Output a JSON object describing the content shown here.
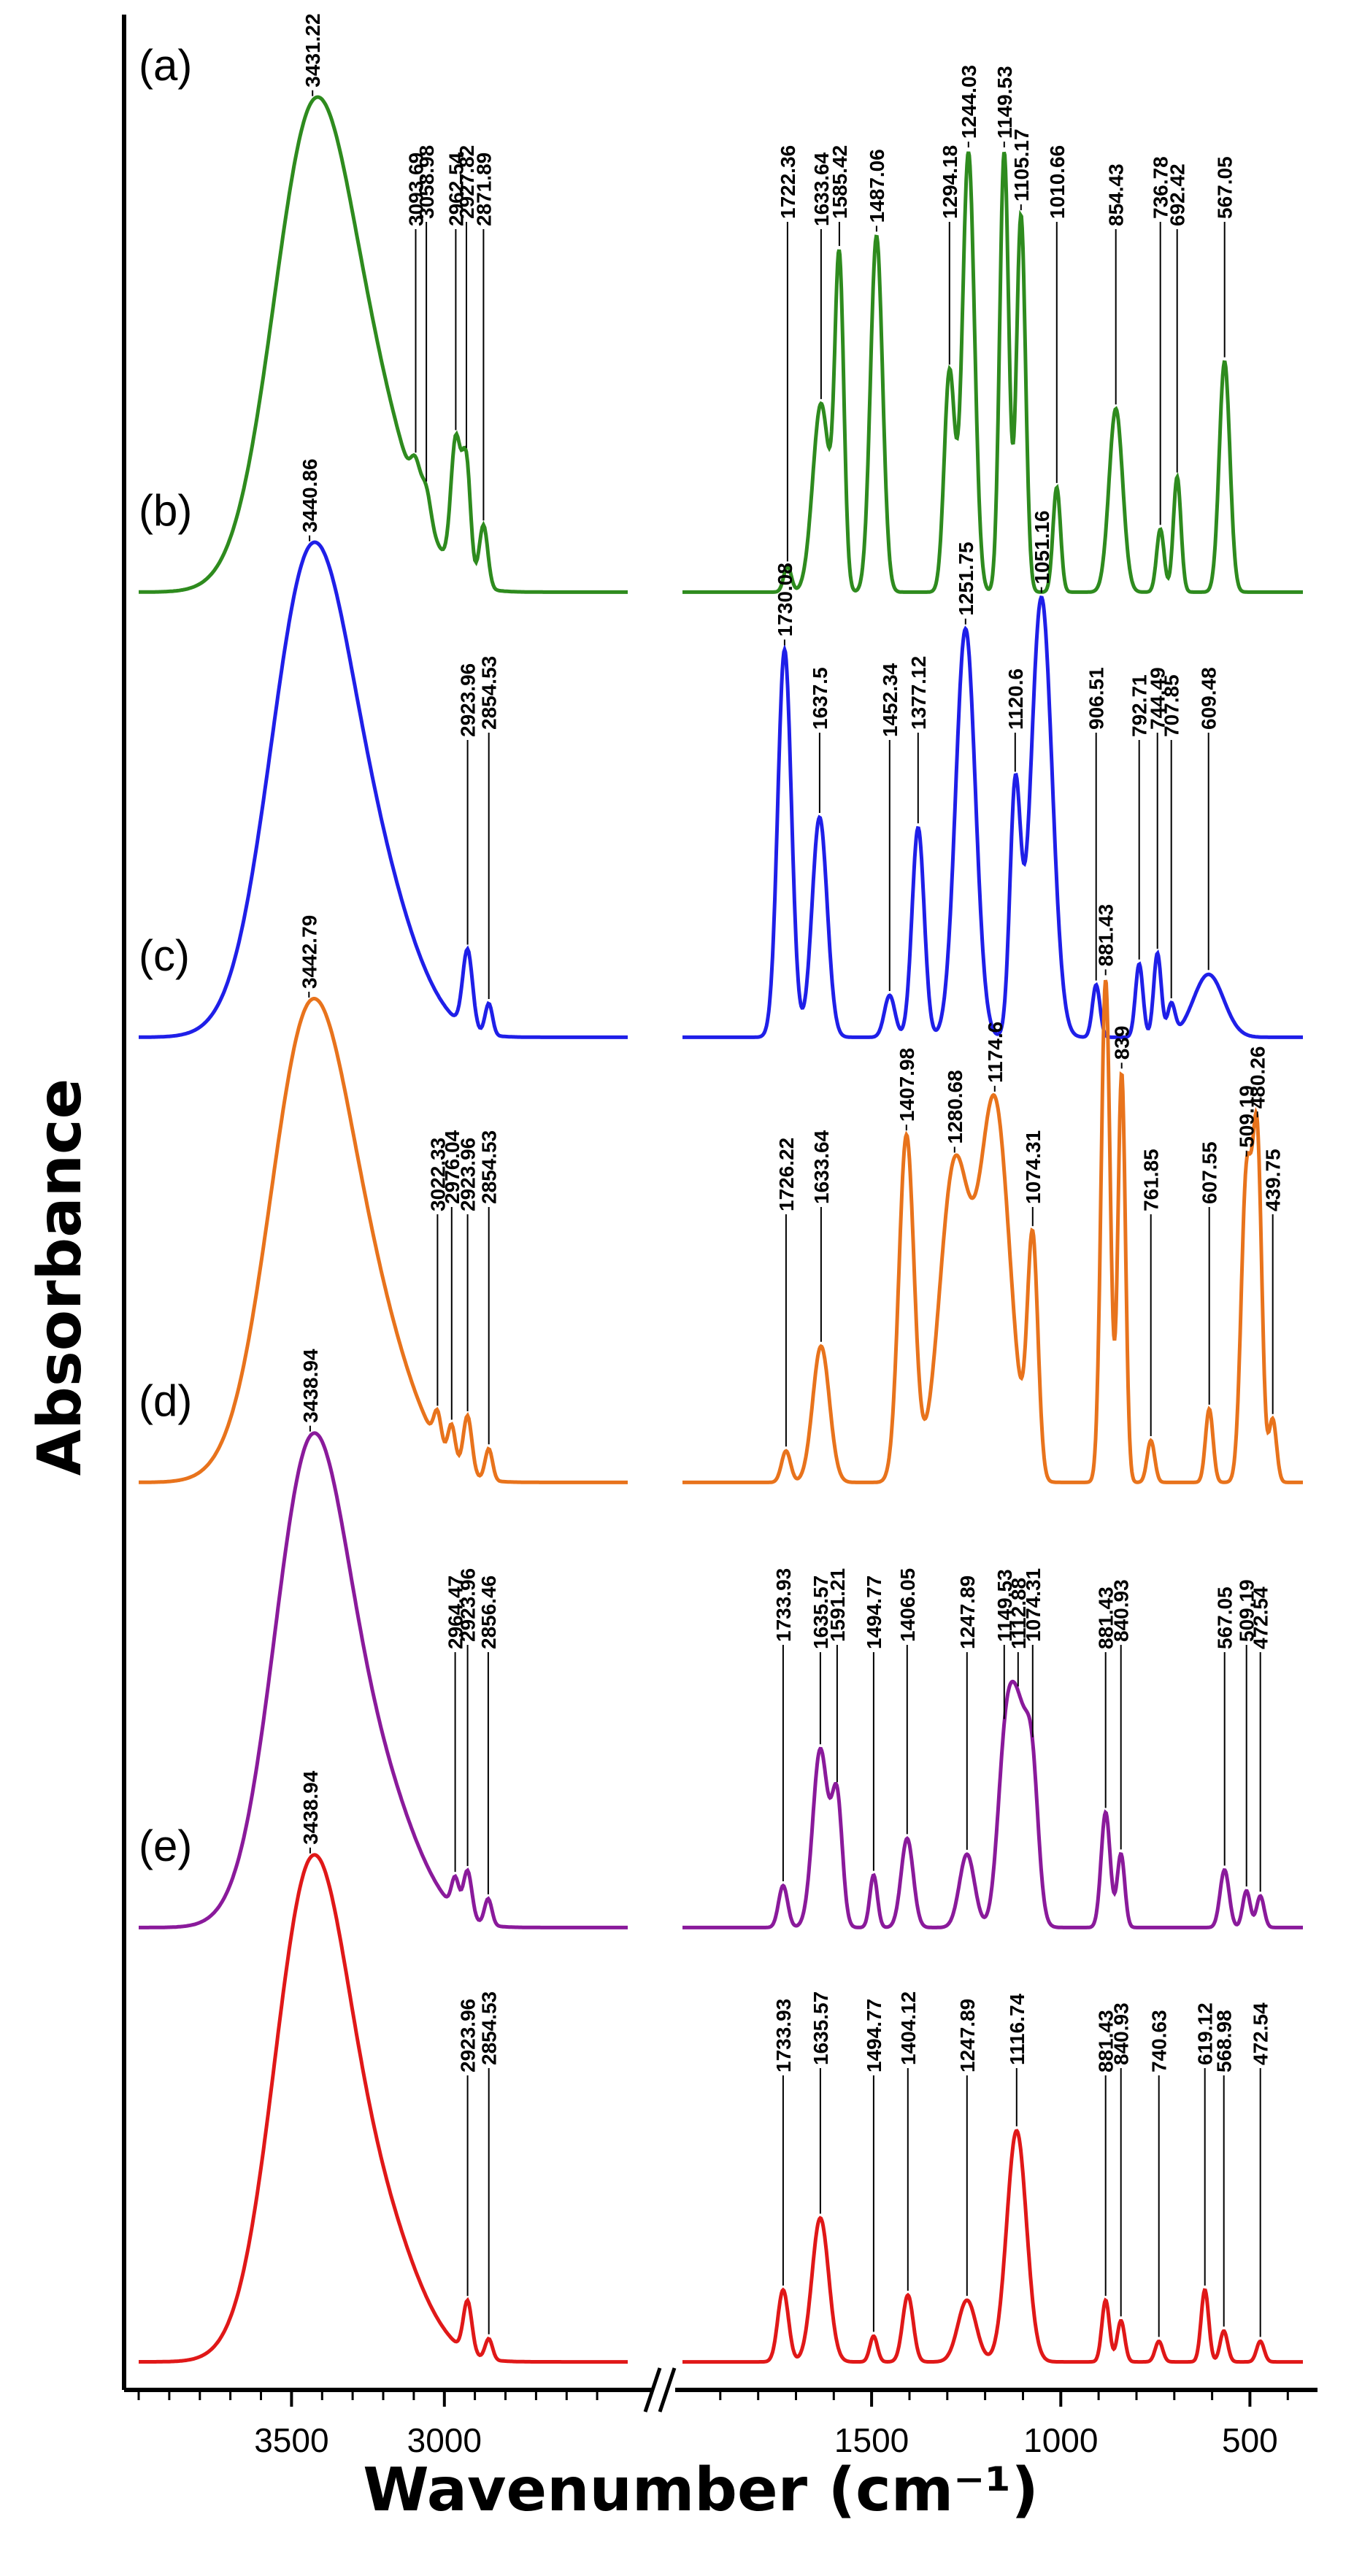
{
  "chart_data": {
    "type": "line",
    "title": "",
    "xlabel": "Wavenumber (cm⁻¹)",
    "ylabel": "Absorbance",
    "xaxis": {
      "reversed": true,
      "broken": true,
      "segments": [
        [
          4000,
          2400
        ],
        [
          2000,
          360
        ]
      ],
      "tick_labels": [
        "3500",
        "3000",
        "1500",
        "1000",
        "500"
      ],
      "tick_values": [
        3500,
        3000,
        1500,
        1000,
        500
      ]
    },
    "colors": {
      "a": "#2e8b1e",
      "b": "#1f1fe8",
      "c": "#e8731c",
      "d": "#8a1a9b",
      "e": "#e01818"
    },
    "series": [
      {
        "name": "(a)",
        "color_key": "a",
        "baseline_x": [
          4000,
          2400
        ],
        "peaks": [
          {
            "x": 3431.22,
            "h": 0.88,
            "w": 130,
            "label": "3431.22"
          },
          {
            "x": 3093.69,
            "h": 0.06,
            "w": 15,
            "label": "3093.69"
          },
          {
            "x": 3058.98,
            "h": 0.06,
            "w": 15,
            "label": "3058.98"
          },
          {
            "x": 2962.54,
            "h": 0.25,
            "w": 16,
            "label": "2962.54"
          },
          {
            "x": 2927.82,
            "h": 0.22,
            "w": 14,
            "label": "2927.82"
          },
          {
            "x": 2871.89,
            "h": 0.12,
            "w": 14,
            "label": "2871.89"
          },
          {
            "x": 1722.36,
            "h": 0.05,
            "w": 10,
            "label": "1722.36"
          },
          {
            "x": 1633.64,
            "h": 0.36,
            "w": 22,
            "label": "1633.64"
          },
          {
            "x": 1585.42,
            "h": 0.62,
            "w": 12,
            "label": "1585.42"
          },
          {
            "x": 1487.06,
            "h": 0.68,
            "w": 16,
            "label": "1487.06"
          },
          {
            "x": 1294.18,
            "h": 0.42,
            "w": 14,
            "label": "1294.18"
          },
          {
            "x": 1244.03,
            "h": 0.84,
            "w": 16,
            "label": "1244.03"
          },
          {
            "x": 1149.53,
            "h": 0.84,
            "w": 12,
            "label": "1149.53"
          },
          {
            "x": 1105.17,
            "h": 0.72,
            "w": 12,
            "label": "1105.17"
          },
          {
            "x": 1010.66,
            "h": 0.2,
            "w": 10,
            "label": "1010.66"
          },
          {
            "x": 854.43,
            "h": 0.35,
            "w": 18,
            "label": "854.43"
          },
          {
            "x": 736.78,
            "h": 0.12,
            "w": 10,
            "label": "736.78"
          },
          {
            "x": 692.42,
            "h": 0.22,
            "w": 10,
            "label": "692.42"
          },
          {
            "x": 567.05,
            "h": 0.44,
            "w": 14,
            "label": "567.05"
          }
        ]
      },
      {
        "name": "(b)",
        "color_key": "b",
        "baseline_x": [
          4000,
          2400
        ],
        "peaks": [
          {
            "x": 3440.86,
            "h": 0.88,
            "w": 130,
            "label": "3440.86"
          },
          {
            "x": 2923.96,
            "h": 0.15,
            "w": 16,
            "label": "2923.96"
          },
          {
            "x": 2854.53,
            "h": 0.06,
            "w": 12,
            "label": "2854.53"
          },
          {
            "x": 1730.08,
            "h": 0.74,
            "w": 18,
            "label": "1730.08"
          },
          {
            "x": 1637.5,
            "h": 0.42,
            "w": 20,
            "label": "1637.5"
          },
          {
            "x": 1452.34,
            "h": 0.08,
            "w": 14,
            "label": "1452.34"
          },
          {
            "x": 1377.12,
            "h": 0.4,
            "w": 16,
            "label": "1377.12"
          },
          {
            "x": 1251.75,
            "h": 0.78,
            "w": 26,
            "label": "1251.75"
          },
          {
            "x": 1120.6,
            "h": 0.46,
            "w": 14,
            "label": "1120.6"
          },
          {
            "x": 1051.16,
            "h": 0.84,
            "w": 28,
            "label": "1051.16"
          },
          {
            "x": 906.51,
            "h": 0.1,
            "w": 10,
            "label": "906.51"
          },
          {
            "x": 792.71,
            "h": 0.14,
            "w": 10,
            "label": "792.71"
          },
          {
            "x": 744.49,
            "h": 0.16,
            "w": 10,
            "label": "744.49"
          },
          {
            "x": 707.85,
            "h": 0.06,
            "w": 10,
            "label": "707.85"
          },
          {
            "x": 609.48,
            "h": 0.12,
            "w": 40,
            "label": "609.48"
          }
        ]
      },
      {
        "name": "(c)",
        "color_key": "c",
        "baseline_x": [
          4000,
          2400
        ],
        "peaks": [
          {
            "x": 3442.79,
            "h": 0.86,
            "w": 130,
            "label": "3442.79"
          },
          {
            "x": 3022.33,
            "h": 0.06,
            "w": 12,
            "label": "3022.33"
          },
          {
            "x": 2976.04,
            "h": 0.07,
            "w": 12,
            "label": "2976.04"
          },
          {
            "x": 2923.96,
            "h": 0.11,
            "w": 14,
            "label": "2923.96"
          },
          {
            "x": 2854.53,
            "h": 0.06,
            "w": 12,
            "label": "2854.53"
          },
          {
            "x": 1726.22,
            "h": 0.06,
            "w": 12,
            "label": "1726.22"
          },
          {
            "x": 1633.64,
            "h": 0.26,
            "w": 22,
            "label": "1633.64"
          },
          {
            "x": 1407.98,
            "h": 0.66,
            "w": 20,
            "label": "1407.98"
          },
          {
            "x": 1280.68,
            "h": 0.6,
            "w": 40,
            "label": "1280.68"
          },
          {
            "x": 1174.6,
            "h": 0.72,
            "w": 40,
            "label": "1174.6"
          },
          {
            "x": 1074.31,
            "h": 0.45,
            "w": 14,
            "label": "1074.31"
          },
          {
            "x": 881.43,
            "h": 0.96,
            "w": 12,
            "label": "881.43"
          },
          {
            "x": 839,
            "h": 0.78,
            "w": 10,
            "label": "839"
          },
          {
            "x": 761.85,
            "h": 0.08,
            "w": 10,
            "label": "761.85"
          },
          {
            "x": 607.55,
            "h": 0.14,
            "w": 10,
            "label": "607.55"
          },
          {
            "x": 509.19,
            "h": 0.58,
            "w": 14,
            "label": "509.19"
          },
          {
            "x": 480.26,
            "h": 0.62,
            "w": 12,
            "label": "480.26"
          },
          {
            "x": 439.75,
            "h": 0.12,
            "w": 10,
            "label": "439.75"
          }
        ]
      },
      {
        "name": "(d)",
        "color_key": "d",
        "baseline_x": [
          4000,
          2400
        ],
        "peaks": [
          {
            "x": 3438.94,
            "h": 0.88,
            "w": 120,
            "label": "3438.94"
          },
          {
            "x": 2964.47,
            "h": 0.06,
            "w": 12,
            "label": "2964.47"
          },
          {
            "x": 2923.96,
            "h": 0.09,
            "w": 14,
            "label": "2923.96"
          },
          {
            "x": 2856.46,
            "h": 0.05,
            "w": 12,
            "label": "2856.46"
          },
          {
            "x": 1733.93,
            "h": 0.08,
            "w": 12,
            "label": "1733.93"
          },
          {
            "x": 1635.57,
            "h": 0.34,
            "w": 20,
            "label": "1635.57"
          },
          {
            "x": 1591.21,
            "h": 0.24,
            "w": 14,
            "label": "1591.21"
          },
          {
            "x": 1494.77,
            "h": 0.1,
            "w": 10,
            "label": "1494.77"
          },
          {
            "x": 1406.05,
            "h": 0.17,
            "w": 16,
            "label": "1406.05"
          },
          {
            "x": 1247.89,
            "h": 0.14,
            "w": 20,
            "label": "1247.89"
          },
          {
            "x": 1149.53,
            "h": 0.22,
            "w": 20,
            "label": "1149.53"
          },
          {
            "x": 1112.88,
            "h": 0.4,
            "w": 28,
            "label": "1112.88"
          },
          {
            "x": 1074.31,
            "h": 0.2,
            "w": 16,
            "label": "1074.31"
          },
          {
            "x": 881.43,
            "h": 0.22,
            "w": 12,
            "label": "881.43"
          },
          {
            "x": 840.93,
            "h": 0.14,
            "w": 10,
            "label": "840.93"
          },
          {
            "x": 567.05,
            "h": 0.11,
            "w": 12,
            "label": "567.05"
          },
          {
            "x": 509.19,
            "h": 0.07,
            "w": 10,
            "label": "509.19"
          },
          {
            "x": 472.54,
            "h": 0.06,
            "w": 10,
            "label": "472.54"
          }
        ]
      },
      {
        "name": "(e)",
        "color_key": "e",
        "baseline_x": [
          4000,
          2400
        ],
        "peaks": [
          {
            "x": 3438.94,
            "h": 0.92,
            "w": 120,
            "label": "3438.94"
          },
          {
            "x": 2923.96,
            "h": 0.1,
            "w": 14,
            "label": "2923.96"
          },
          {
            "x": 2854.53,
            "h": 0.04,
            "w": 12,
            "label": "2854.53"
          },
          {
            "x": 1733.93,
            "h": 0.14,
            "w": 14,
            "label": "1733.93"
          },
          {
            "x": 1635.57,
            "h": 0.28,
            "w": 22,
            "label": "1635.57"
          },
          {
            "x": 1494.77,
            "h": 0.05,
            "w": 10,
            "label": "1494.77"
          },
          {
            "x": 1404.12,
            "h": 0.13,
            "w": 14,
            "label": "1404.12"
          },
          {
            "x": 1247.89,
            "h": 0.12,
            "w": 24,
            "label": "1247.89"
          },
          {
            "x": 1116.74,
            "h": 0.45,
            "w": 26,
            "label": "1116.74"
          },
          {
            "x": 881.43,
            "h": 0.12,
            "w": 10,
            "label": "881.43"
          },
          {
            "x": 840.93,
            "h": 0.08,
            "w": 10,
            "label": "840.93"
          },
          {
            "x": 740.63,
            "h": 0.04,
            "w": 10,
            "label": "740.63"
          },
          {
            "x": 619.12,
            "h": 0.14,
            "w": 10,
            "label": "619.12"
          },
          {
            "x": 568.98,
            "h": 0.06,
            "w": 10,
            "label": "568.98"
          },
          {
            "x": 472.54,
            "h": 0.04,
            "w": 10,
            "label": "472.54"
          }
        ]
      }
    ]
  }
}
